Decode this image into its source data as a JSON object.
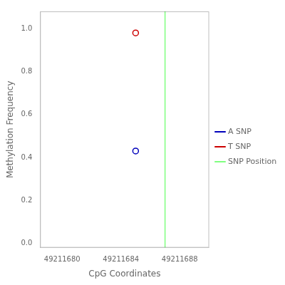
{
  "chart_data": {
    "type": "scatter",
    "xlabel": "CpG Coordinates",
    "ylabel": "Methylation Frequency",
    "series": [
      {
        "name": "A SNP",
        "color": "#0000bb",
        "marker": "circle",
        "x": [
          49211685
        ],
        "values": [
          0.43
        ]
      },
      {
        "name": "T SNP",
        "color": "#cc0000",
        "marker": "circle",
        "x": [
          49211685
        ],
        "values": [
          0.98
        ]
      },
      {
        "name": "SNP Position",
        "color": "#80ff80",
        "type": "vline",
        "x": [
          49211687
        ]
      }
    ],
    "xlim": [
      49211678.5,
      49211690
    ],
    "ylim": [
      -0.02,
      1.08
    ],
    "xticks": [
      49211680,
      49211684,
      49211688
    ],
    "yticks": [
      {
        "value": 0,
        "label": "0.0"
      },
      0.2,
      0.4,
      0.6,
      0.8,
      {
        "value": 1,
        "label": "1.0"
      }
    ],
    "grid": false,
    "legend": "right"
  }
}
